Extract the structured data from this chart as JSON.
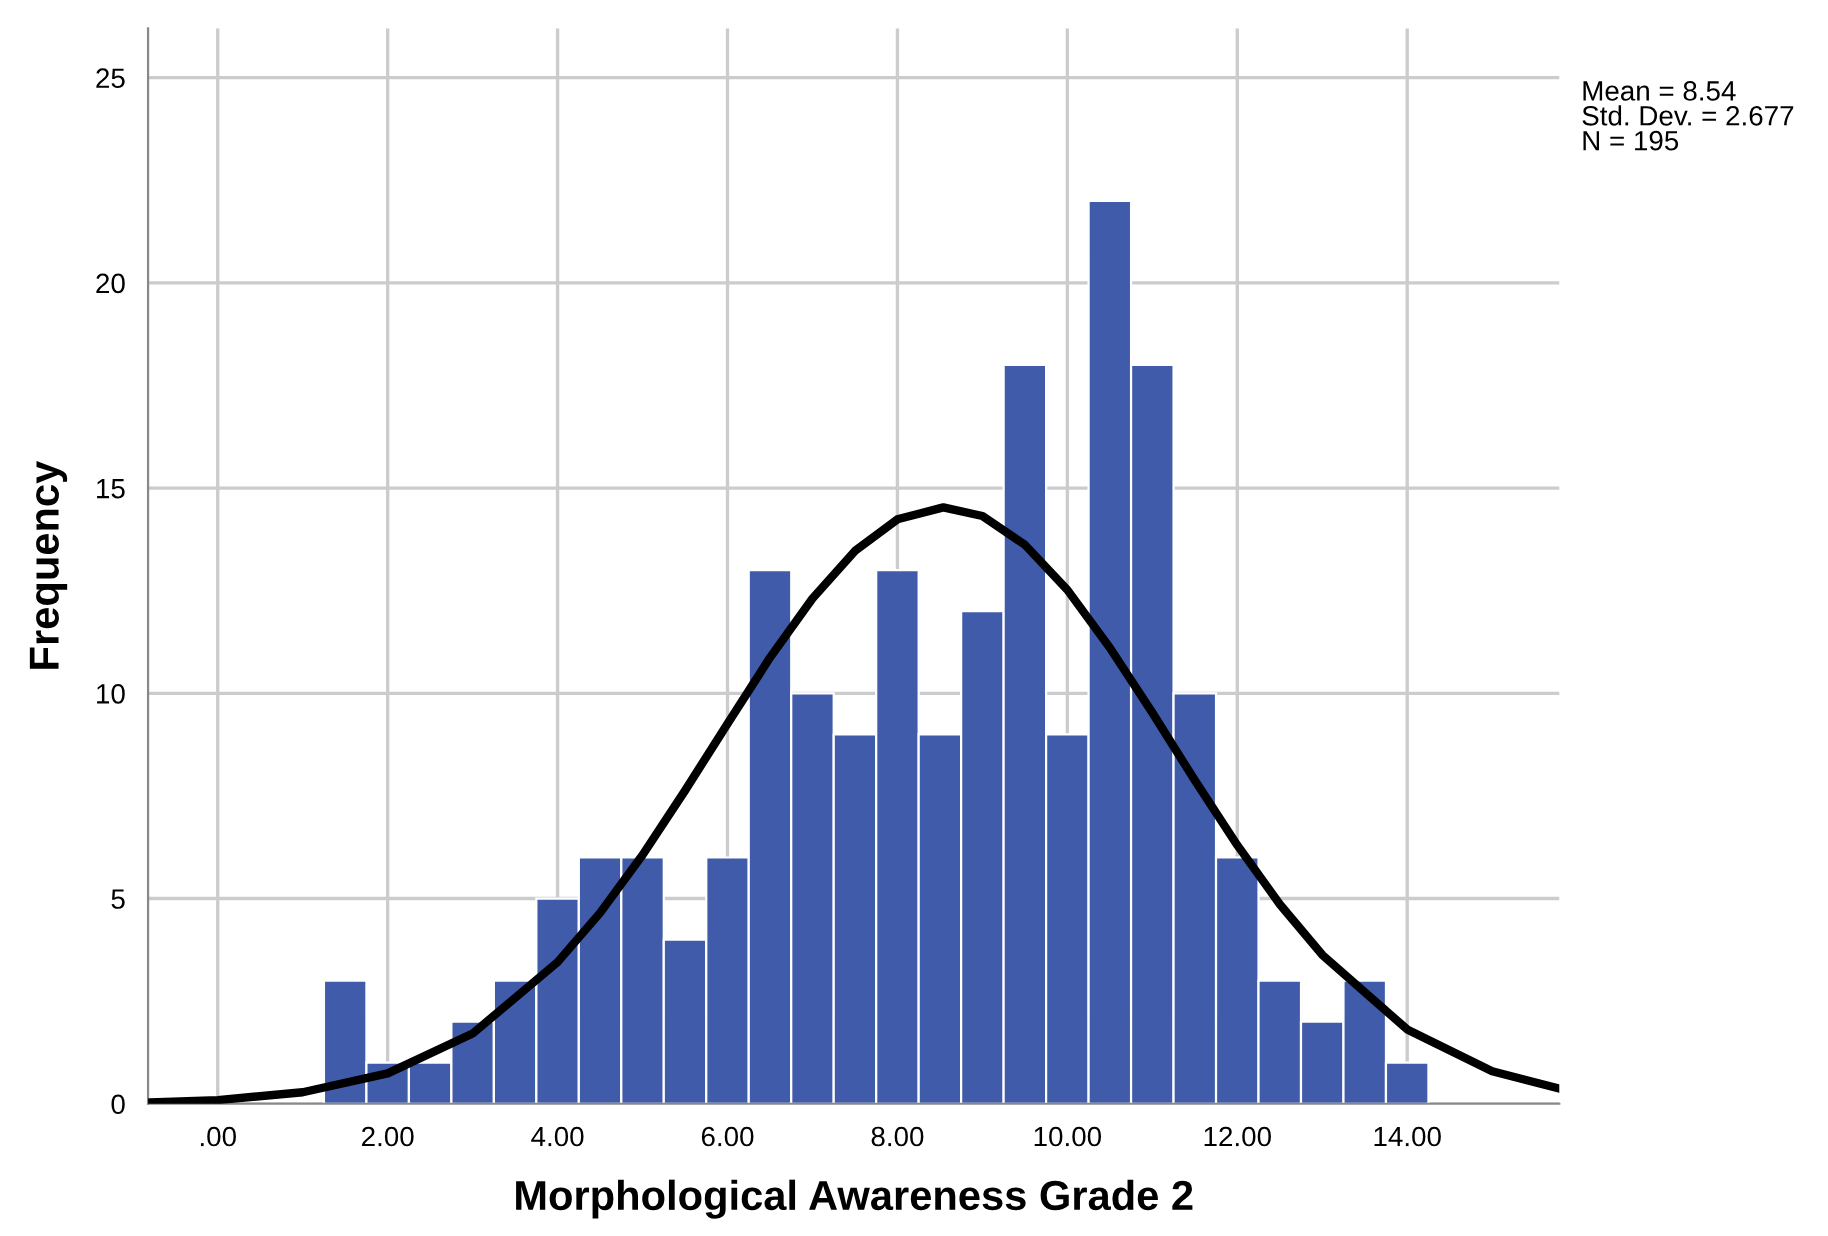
{
  "chart_data": {
    "type": "histogram",
    "xlabel": "Morphological Awareness Grade 2",
    "ylabel": "Frequency",
    "bins": [
      1.25,
      1.75,
      2.25,
      2.75,
      3.25,
      3.75,
      4.25,
      4.75,
      5.25,
      5.75,
      6.25,
      6.75,
      7.25,
      7.75,
      8.25,
      8.75,
      9.25,
      9.75,
      10.25,
      10.75,
      11.25,
      11.75,
      12.25,
      12.75,
      13.25,
      13.75,
      14.25
    ],
    "values": [
      3,
      1,
      1,
      2,
      3,
      5,
      6,
      6,
      4,
      6,
      13,
      10,
      9,
      13,
      9,
      12,
      18,
      9,
      22,
      18,
      10,
      6,
      3,
      2,
      3,
      1
    ],
    "color": "#3f5ba9",
    "series": [
      {
        "type": "line",
        "color": "#000000",
        "x": [
          -0.8,
          0,
          1,
          2,
          3,
          4,
          4.5,
          5,
          5.5,
          6,
          6.5,
          7,
          7.5,
          8,
          8.54,
          9,
          9.5,
          10,
          10.5,
          11,
          11.5,
          12,
          12.5,
          13,
          14,
          15,
          15.79
        ],
        "values": [
          0.03,
          0.09,
          0.28,
          0.74,
          1.71,
          3.45,
          4.65,
          6.06,
          7.63,
          9.26,
          10.87,
          12.31,
          13.47,
          14.24,
          14.53,
          14.32,
          13.62,
          12.52,
          11.11,
          9.53,
          7.88,
          6.3,
          4.86,
          3.63,
          1.81,
          0.79,
          0.37
        ]
      }
    ],
    "xlim": [
      -0.82,
      15.79
    ],
    "ylim": [
      0,
      26.2
    ],
    "xticks": [
      {
        "value": 0,
        "label": ".00"
      },
      {
        "value": 2,
        "label": "2.00"
      },
      {
        "value": 4,
        "label": "4.00"
      },
      {
        "value": 6,
        "label": "6.00"
      },
      {
        "value": 8,
        "label": "8.00"
      },
      {
        "value": 10,
        "label": "10.00"
      },
      {
        "value": 12,
        "label": "12.00"
      },
      {
        "value": 14,
        "label": "14.00"
      }
    ],
    "yticks": [
      0,
      5,
      10,
      15,
      20,
      25
    ],
    "grid": true,
    "annotations": [
      "Mean = 8.54\nStd. Dev. = 2.677\nN = 195"
    ]
  }
}
